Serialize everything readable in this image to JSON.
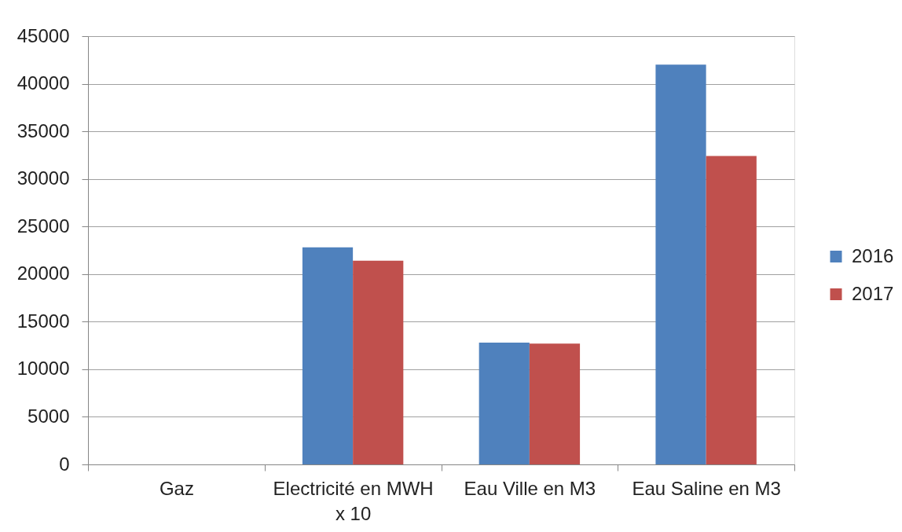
{
  "chart_data": {
    "type": "bar",
    "categories": [
      "Gaz",
      "Electricité en MWH x 10",
      "Eau Ville en M3",
      "Eau Saline en M3"
    ],
    "series": [
      {
        "name": "2016",
        "color": "#4f81bd",
        "values": [
          null,
          22800,
          12800,
          42000
        ]
      },
      {
        "name": "2017",
        "color": "#c0504d",
        "values": [
          null,
          21400,
          12700,
          32400
        ]
      }
    ],
    "ylim": [
      0,
      45000
    ],
    "yticks": [
      0,
      5000,
      10000,
      15000,
      20000,
      25000,
      30000,
      35000,
      40000,
      45000
    ],
    "grid": "y",
    "legend": "right"
  }
}
